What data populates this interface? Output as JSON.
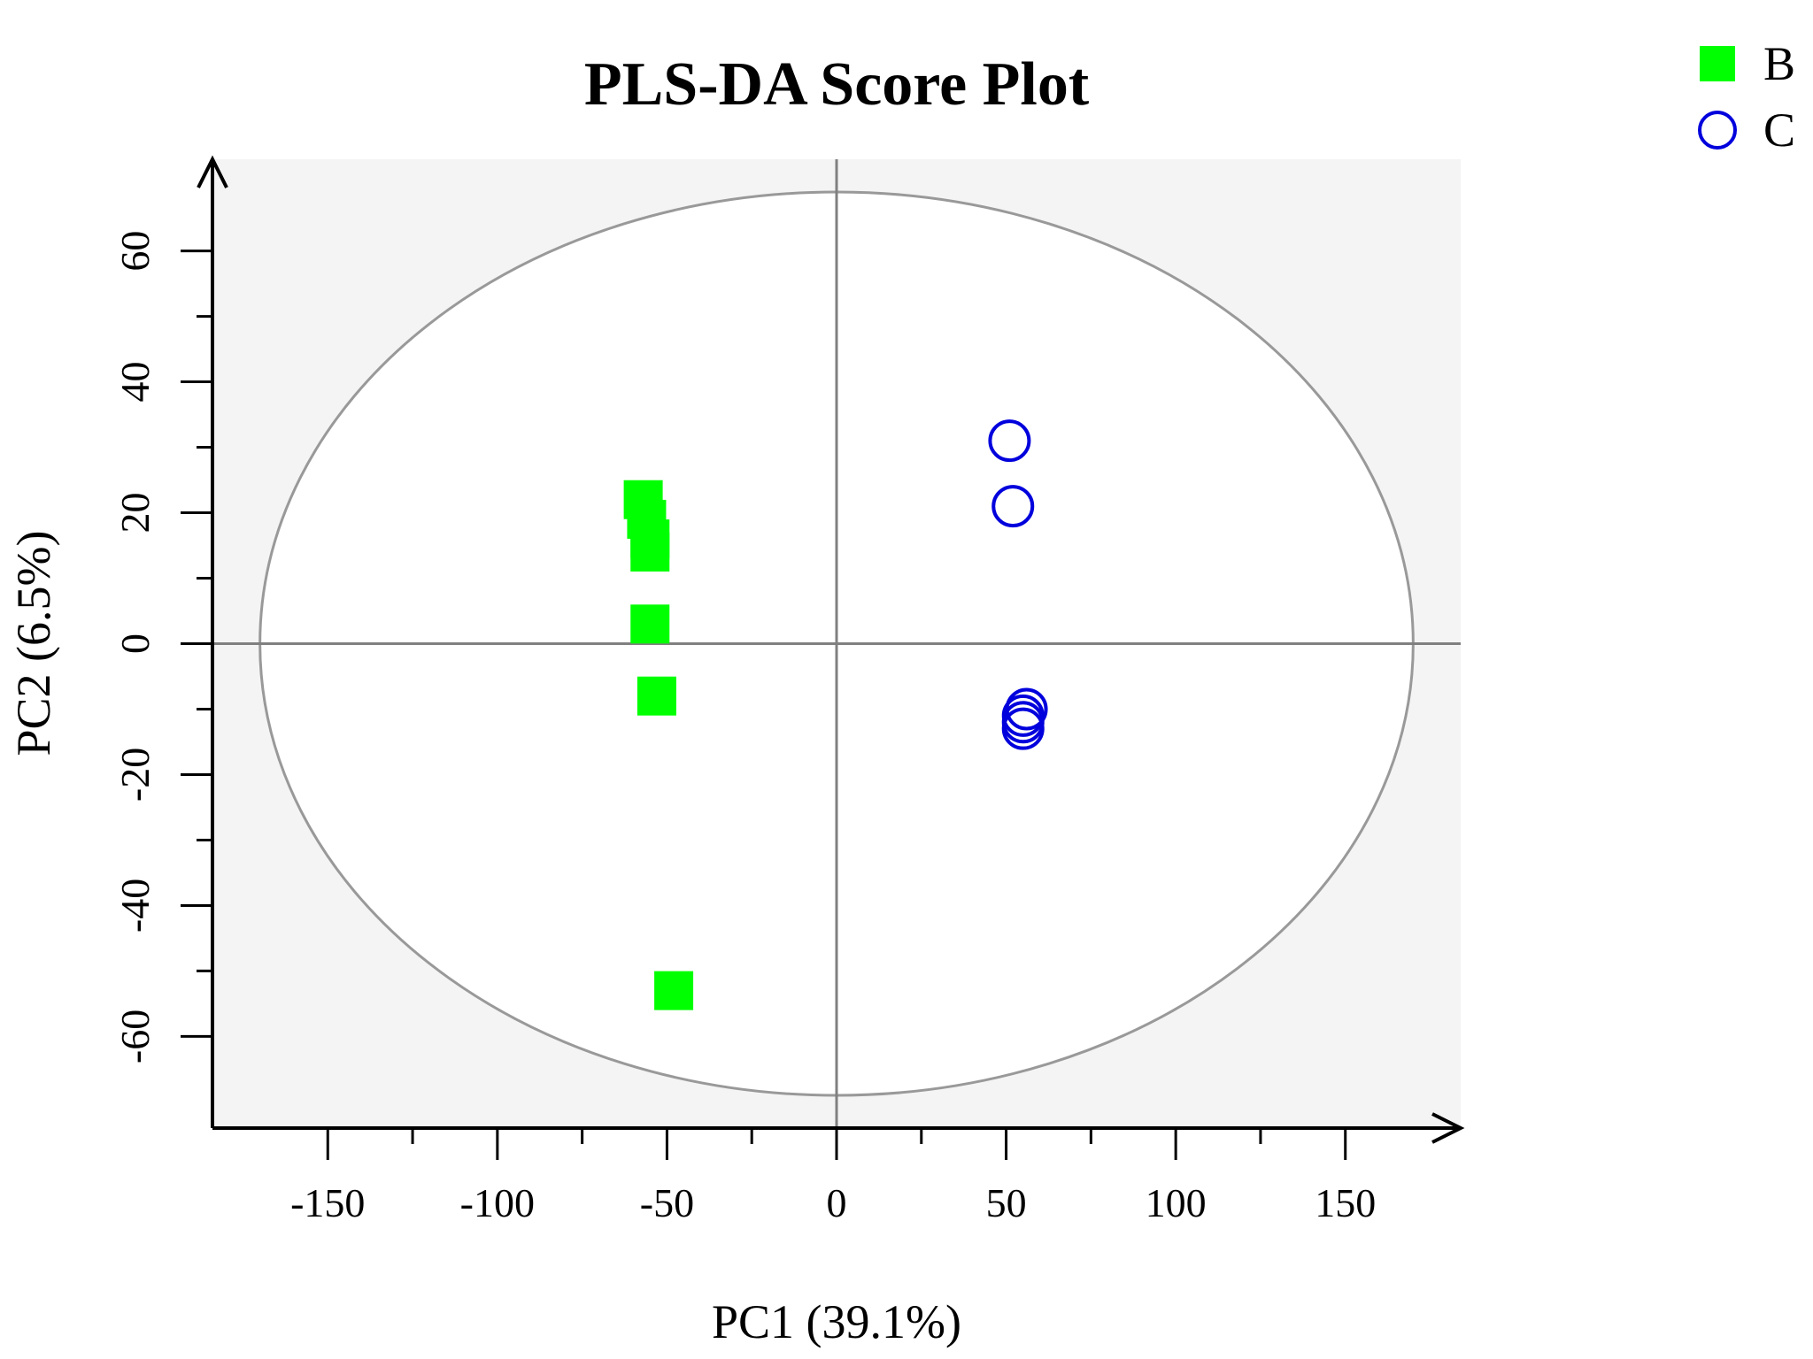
{
  "chart_data": {
    "type": "scatter",
    "title": "PLS-DA Score Plot",
    "xlabel": "PC1 (39.1%)",
    "ylabel": "PC2 (6.5%)",
    "xlim": [
      -184,
      184
    ],
    "ylim": [
      -74,
      74
    ],
    "xticks": [
      -150,
      -100,
      -50,
      0,
      50,
      100,
      150
    ],
    "yticks": [
      -60,
      -40,
      -20,
      0,
      20,
      40,
      60
    ],
    "grid": false,
    "legend_position": "top-right",
    "confidence_ellipse": {
      "center": [
        0,
        0
      ],
      "rx": 170,
      "ry": 69,
      "color": "#999999"
    },
    "series": [
      {
        "name": "B",
        "marker": "filled-square",
        "color": "#00ff00",
        "points": [
          {
            "x": -57,
            "y": 22
          },
          {
            "x": -55,
            "y": 16
          },
          {
            "x": -56,
            "y": 19
          },
          {
            "x": -55,
            "y": 14
          },
          {
            "x": -55,
            "y": 3
          },
          {
            "x": -53,
            "y": -8
          },
          {
            "x": -48,
            "y": -53
          }
        ]
      },
      {
        "name": "C",
        "marker": "open-circle",
        "color": "#0000dd",
        "points": [
          {
            "x": 51,
            "y": 31
          },
          {
            "x": 52,
            "y": 21
          },
          {
            "x": 55,
            "y": -11
          },
          {
            "x": 56,
            "y": -10
          },
          {
            "x": 55,
            "y": -12
          },
          {
            "x": 55,
            "y": -13
          }
        ]
      }
    ]
  }
}
